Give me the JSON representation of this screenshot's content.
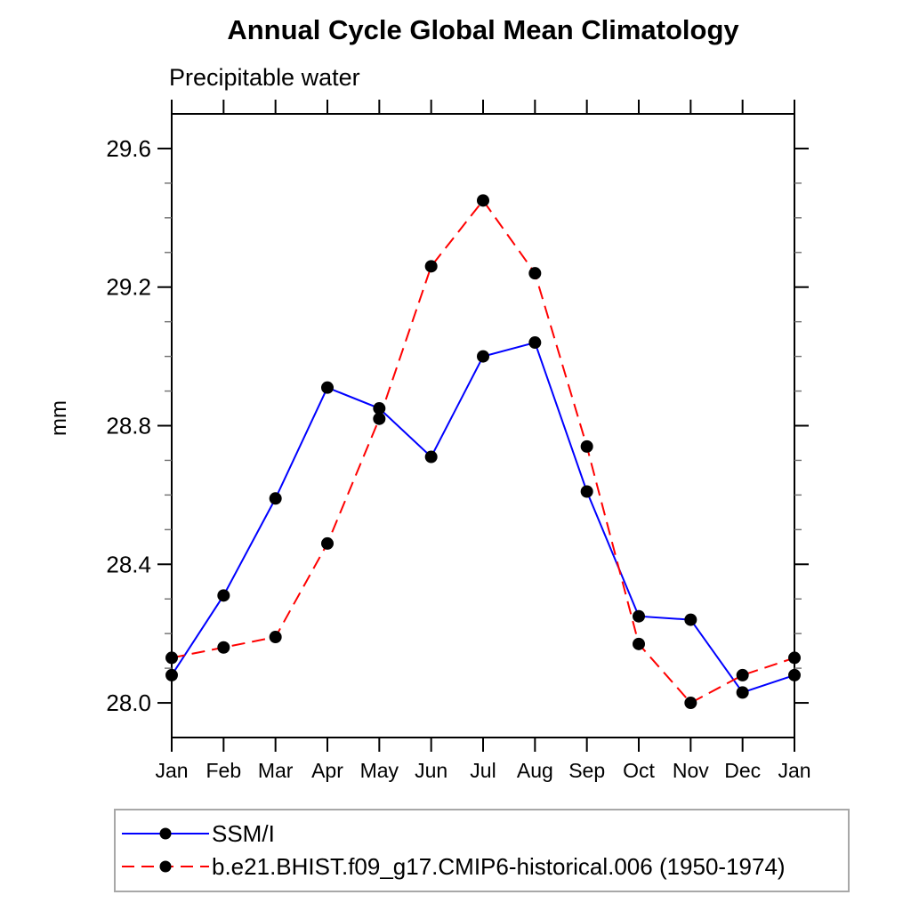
{
  "chart": {
    "title": "Annual Cycle Global Mean Climatology",
    "subtitle": "Precipitable water",
    "ylabel": "mm"
  },
  "chart_data": {
    "type": "line",
    "title": "Annual Cycle Global Mean Climatology",
    "subtitle": "Precipitable water",
    "xlabel": "",
    "ylabel": "mm",
    "categories": [
      "Jan",
      "Feb",
      "Mar",
      "Apr",
      "May",
      "Jun",
      "Jul",
      "Aug",
      "Sep",
      "Oct",
      "Nov",
      "Dec",
      "Jan"
    ],
    "ylim": [
      27.9,
      29.7
    ],
    "y_major_ticks": [
      28.0,
      28.4,
      28.8,
      29.2,
      29.6
    ],
    "y_minor_step": 0.1,
    "grid": false,
    "legend_position": "bottom-left-box",
    "marker_color": "#000000",
    "axis_color": "#000000",
    "minor_tick_color": "#6e6e6e",
    "series": [
      {
        "name": "SSM/I",
        "color": "#0000ff",
        "style": "solid",
        "marker": "circle",
        "values": [
          28.08,
          28.31,
          28.59,
          28.91,
          28.85,
          28.71,
          29.0,
          29.04,
          28.61,
          28.25,
          28.24,
          28.03,
          28.08
        ]
      },
      {
        "name": "b.e21.BHIST.f09_g17.CMIP6-historical.006 (1950-1974)",
        "color": "#ff0000",
        "style": "dashed",
        "marker": "circle",
        "values": [
          28.13,
          28.16,
          28.19,
          28.46,
          28.82,
          29.26,
          29.45,
          29.24,
          28.74,
          28.17,
          28.0,
          28.08,
          28.13
        ]
      }
    ]
  }
}
